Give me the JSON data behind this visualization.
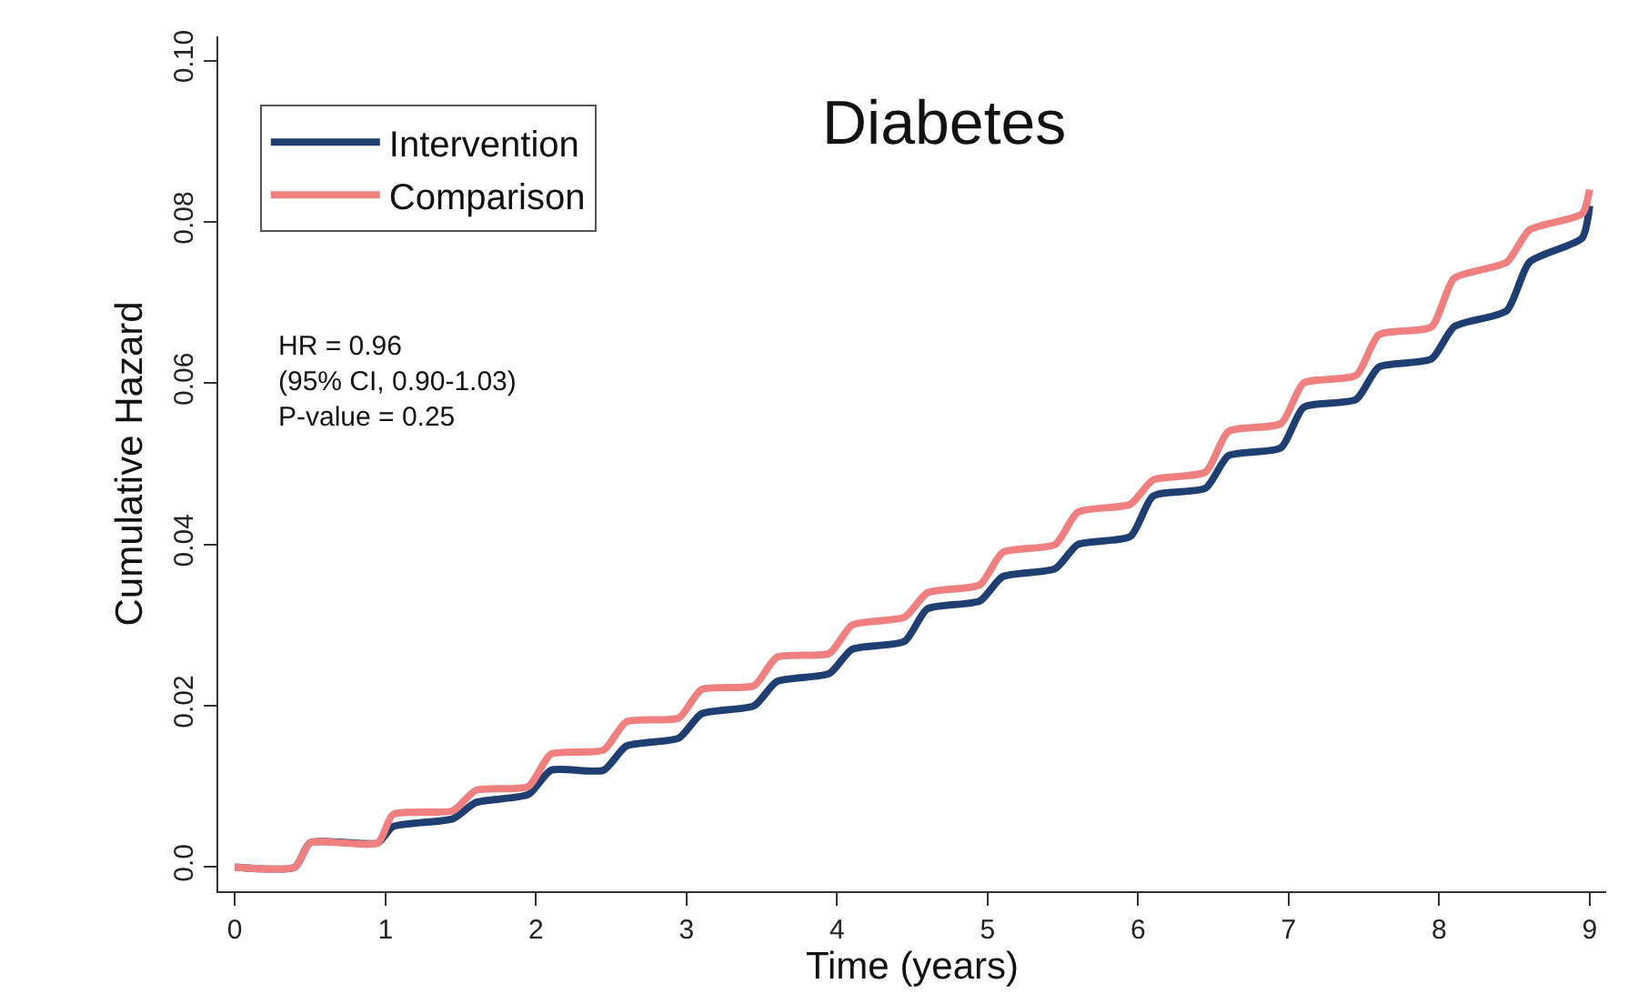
{
  "chart_data": {
    "type": "line",
    "title": "Diabetes",
    "xlabel": "Time (years)",
    "ylabel": "Cumulative Hazard",
    "xlim": [
      -0.11,
      9.11
    ],
    "xticks": [
      0,
      1,
      2,
      3,
      4,
      5,
      6,
      7,
      8,
      9
    ],
    "ylim": [
      -0.003,
      0.103
    ],
    "yticks": [
      {
        "value": 0,
        "label": "0.0"
      },
      0.02,
      0.04,
      0.06,
      0.08,
      {
        "value": 0.1,
        "label": "0.10"
      }
    ],
    "legend": "top left",
    "marker": "none",
    "line_style": "solid",
    "annotations": [
      "HR = 0.96",
      "(95% CI, 0.90-1.03)",
      "P-value = 0.25"
    ],
    "series": [
      {
        "name": "Intervention",
        "color": "#1f3f73",
        "x": [
          0,
          0.4,
          0.5,
          0.95,
          1.05,
          1.45,
          1.6,
          1.95,
          2.1,
          2.45,
          2.6,
          2.95,
          3.1,
          3.45,
          3.6,
          3.95,
          4.1,
          4.45,
          4.6,
          4.95,
          5.1,
          5.45,
          5.6,
          5.95,
          6.1,
          6.45,
          6.6,
          6.95,
          7.1,
          7.45,
          7.6,
          7.95,
          8.1,
          8.45,
          8.6,
          8.95,
          9
        ],
        "values": [
          0,
          0,
          0.003,
          0.003,
          0.005,
          0.006,
          0.008,
          0.009,
          0.012,
          0.012,
          0.015,
          0.016,
          0.019,
          0.02,
          0.023,
          0.024,
          0.027,
          0.028,
          0.032,
          0.033,
          0.036,
          0.037,
          0.04,
          0.041,
          0.046,
          0.047,
          0.051,
          0.052,
          0.057,
          0.058,
          0.062,
          0.063,
          0.067,
          0.069,
          0.075,
          0.078,
          0.082
        ]
      },
      {
        "name": "Comparison",
        "color": "#f08080",
        "x": [
          0,
          0.4,
          0.5,
          0.95,
          1.05,
          1.45,
          1.6,
          1.95,
          2.1,
          2.45,
          2.6,
          2.95,
          3.1,
          3.45,
          3.6,
          3.95,
          4.1,
          4.45,
          4.6,
          4.95,
          5.1,
          5.45,
          5.6,
          5.95,
          6.1,
          6.45,
          6.6,
          6.95,
          7.1,
          7.45,
          7.6,
          7.95,
          8.1,
          8.45,
          8.6,
          8.95,
          9
        ],
        "values": [
          0,
          0,
          0.003,
          0.003,
          0.0065,
          0.007,
          0.0095,
          0.01,
          0.014,
          0.0145,
          0.018,
          0.0185,
          0.022,
          0.0225,
          0.026,
          0.0265,
          0.03,
          0.031,
          0.034,
          0.035,
          0.039,
          0.04,
          0.044,
          0.045,
          0.048,
          0.049,
          0.054,
          0.055,
          0.06,
          0.061,
          0.066,
          0.067,
          0.073,
          0.075,
          0.079,
          0.081,
          0.084
        ]
      }
    ]
  }
}
